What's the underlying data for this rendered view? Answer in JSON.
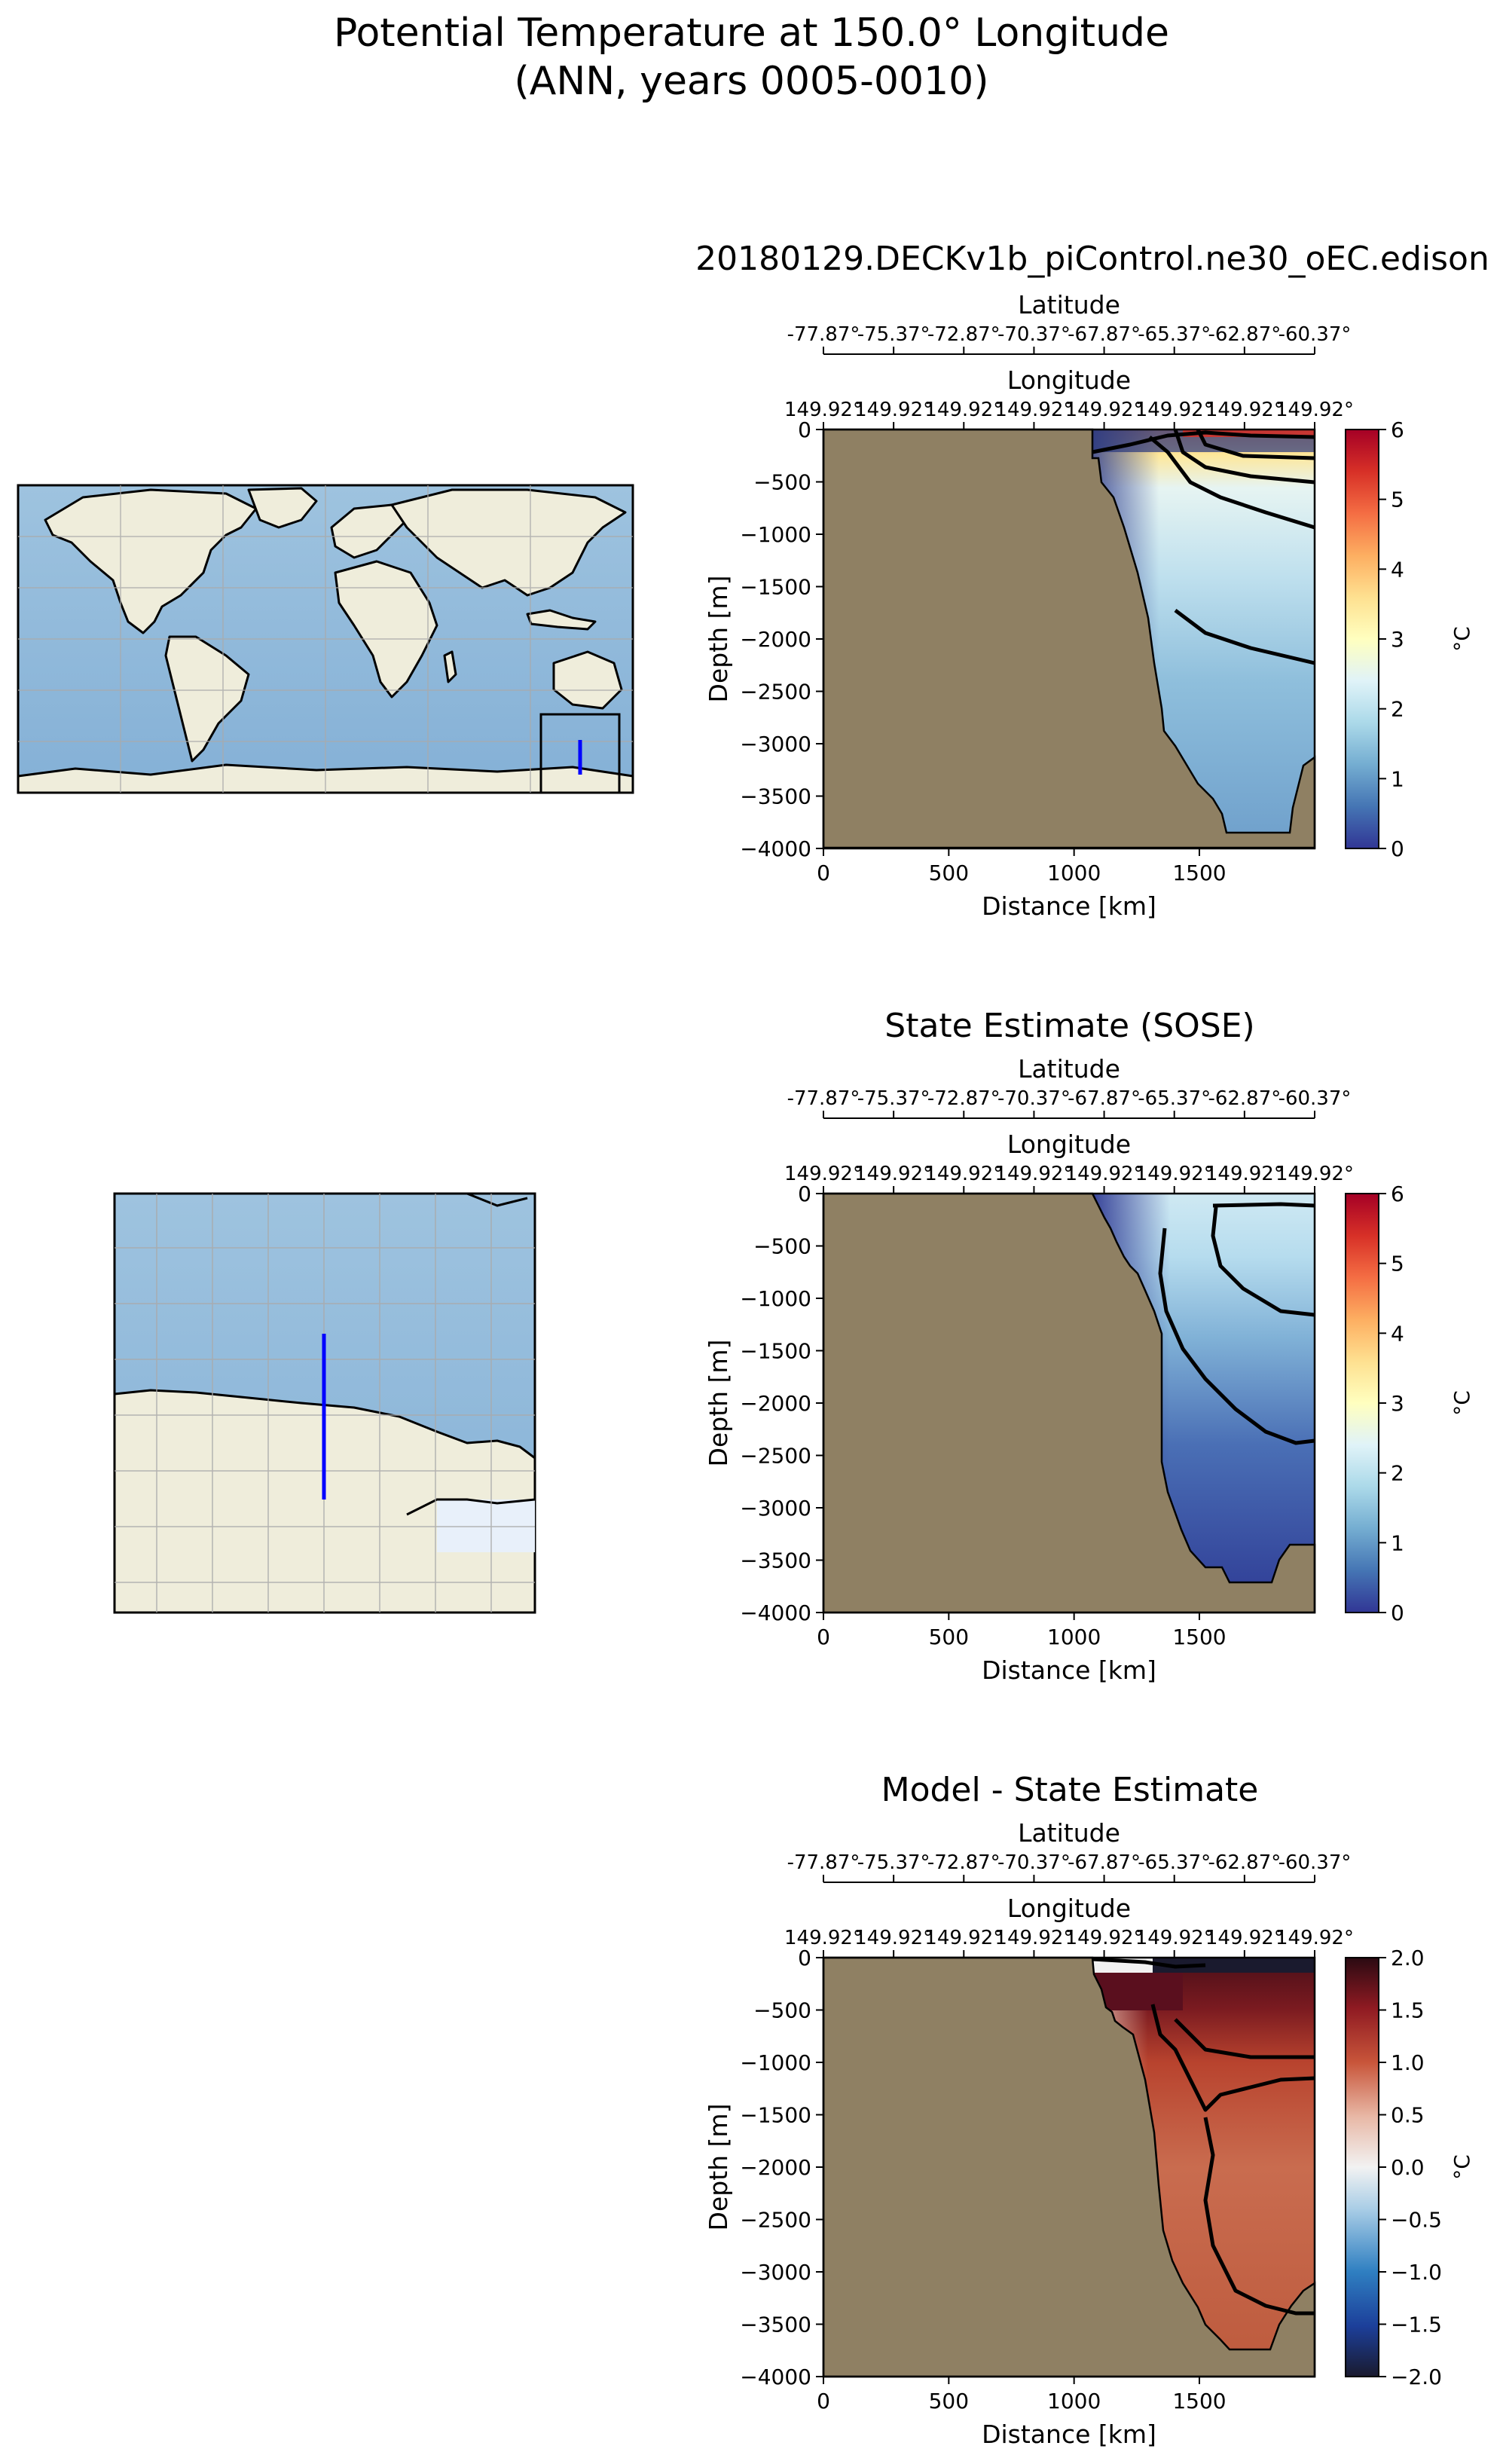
{
  "figure": {
    "title_line1": "Potential Temperature at 150.0° Longitude",
    "title_line2": "(ANN, years 0005-0010)"
  },
  "chart_data": [
    {
      "type": "heatmap",
      "title": "20180129.DECKv1b_piControl.ne30_oEC.edison",
      "xlabel": "Distance [km]",
      "ylabel": "Depth [m]",
      "xlim": [
        0,
        1960
      ],
      "ylim": [
        -4000,
        0
      ],
      "xticks": [
        0,
        500,
        1000,
        1500
      ],
      "yticks": [
        0,
        -500,
        -1000,
        -1500,
        -2000,
        -2500,
        -3000,
        -3500,
        -4000
      ],
      "top_axis_1": {
        "label": "Latitude",
        "ticks": [
          "-77.87°",
          "-75.37°",
          "-72.87°",
          "-70.37°",
          "-67.87°",
          "-65.37°",
          "-62.87°",
          "-60.37°"
        ]
      },
      "top_axis_2": {
        "label": "Longitude",
        "ticks": [
          "149.92°",
          "149.92°",
          "149.92°",
          "149.92°",
          "149.92°",
          "149.92°",
          "149.92°",
          "149.92°"
        ]
      },
      "colorbar": {
        "label": "°C",
        "min": 0,
        "max": 6,
        "ticks": [
          0,
          1,
          2,
          3,
          4,
          5,
          6
        ],
        "colormap": "RdYlBu_r"
      },
      "bathymetry": [
        [
          1060,
          -200
        ],
        [
          1100,
          -600
        ],
        [
          1360,
          -2900
        ],
        [
          1500,
          -3300
        ],
        [
          1640,
          -3860
        ],
        [
          1840,
          -3860
        ],
        [
          1960,
          -3100
        ]
      ],
      "surface_temp": 4.8,
      "deep_temp": 0.9,
      "land_color": "#8f8063"
    },
    {
      "type": "heatmap",
      "title": "State Estimate (SOSE)",
      "xlabel": "Distance [km]",
      "ylabel": "Depth [m]",
      "xlim": [
        0,
        1960
      ],
      "ylim": [
        -4000,
        0
      ],
      "xticks": [
        0,
        500,
        1000,
        1500
      ],
      "yticks": [
        0,
        -500,
        -1000,
        -1500,
        -2000,
        -2500,
        -3000,
        -3500,
        -4000
      ],
      "top_axis_1": {
        "label": "Latitude",
        "ticks": [
          "-77.87°",
          "-75.37°",
          "-72.87°",
          "-70.37°",
          "-67.87°",
          "-65.37°",
          "-62.87°",
          "-60.37°"
        ]
      },
      "top_axis_2": {
        "label": "Longitude",
        "ticks": [
          "149.92°",
          "149.92°",
          "149.92°",
          "149.92°",
          "149.92°",
          "149.92°",
          "149.92°",
          "149.92°"
        ]
      },
      "colorbar": {
        "label": "°C",
        "min": 0,
        "max": 6,
        "ticks": [
          0,
          1,
          2,
          3,
          4,
          5,
          6
        ],
        "colormap": "RdYlBu_r"
      },
      "bathymetry": [
        [
          1060,
          -50
        ],
        [
          1350,
          -1200
        ],
        [
          1360,
          -2900
        ],
        [
          1500,
          -3300
        ],
        [
          1640,
          -3860
        ],
        [
          1840,
          -3860
        ],
        [
          1960,
          -3300
        ]
      ],
      "surface_temp": 2.1,
      "deep_temp": 0.3,
      "land_color": "#8f8063"
    },
    {
      "type": "heatmap",
      "title": "Model - State Estimate",
      "xlabel": "Distance [km]",
      "ylabel": "Depth [m]",
      "xlim": [
        0,
        1960
      ],
      "ylim": [
        -4000,
        0
      ],
      "xticks": [
        0,
        500,
        1000,
        1500
      ],
      "yticks": [
        0,
        -500,
        -1000,
        -1500,
        -2000,
        -2500,
        -3000,
        -3500,
        -4000
      ],
      "top_axis_1": {
        "label": "Latitude",
        "ticks": [
          "-77.87°",
          "-75.37°",
          "-72.87°",
          "-70.37°",
          "-67.87°",
          "-65.37°",
          "-62.87°",
          "-60.37°"
        ]
      },
      "top_axis_2": {
        "label": "Longitude",
        "ticks": [
          "149.92°",
          "149.92°",
          "149.92°",
          "149.92°",
          "149.92°",
          "149.92°",
          "149.92°",
          "149.92°"
        ]
      },
      "colorbar": {
        "label": "°C",
        "min": -2.0,
        "max": 2.0,
        "ticks": [
          "2.0",
          "1.5",
          "1.0",
          "0.5",
          "0.0",
          "−0.5",
          "−1.0",
          "−1.5",
          "−2.0"
        ],
        "colormap": "RdBu_r"
      },
      "bathymetry": [
        [
          1060,
          -200
        ],
        [
          1100,
          -600
        ],
        [
          1360,
          -2900
        ],
        [
          1500,
          -3300
        ],
        [
          1640,
          -3860
        ],
        [
          1840,
          -3860
        ],
        [
          1960,
          -3100
        ]
      ],
      "surface_temp": 1.9,
      "deep_temp": 1.0,
      "land_color": "#8f8063"
    }
  ],
  "maps": {
    "global": {
      "name": "global-map",
      "transect_longitude": 150.0
    },
    "regional": {
      "name": "regional-map",
      "transect_longitude": 150.0
    }
  }
}
